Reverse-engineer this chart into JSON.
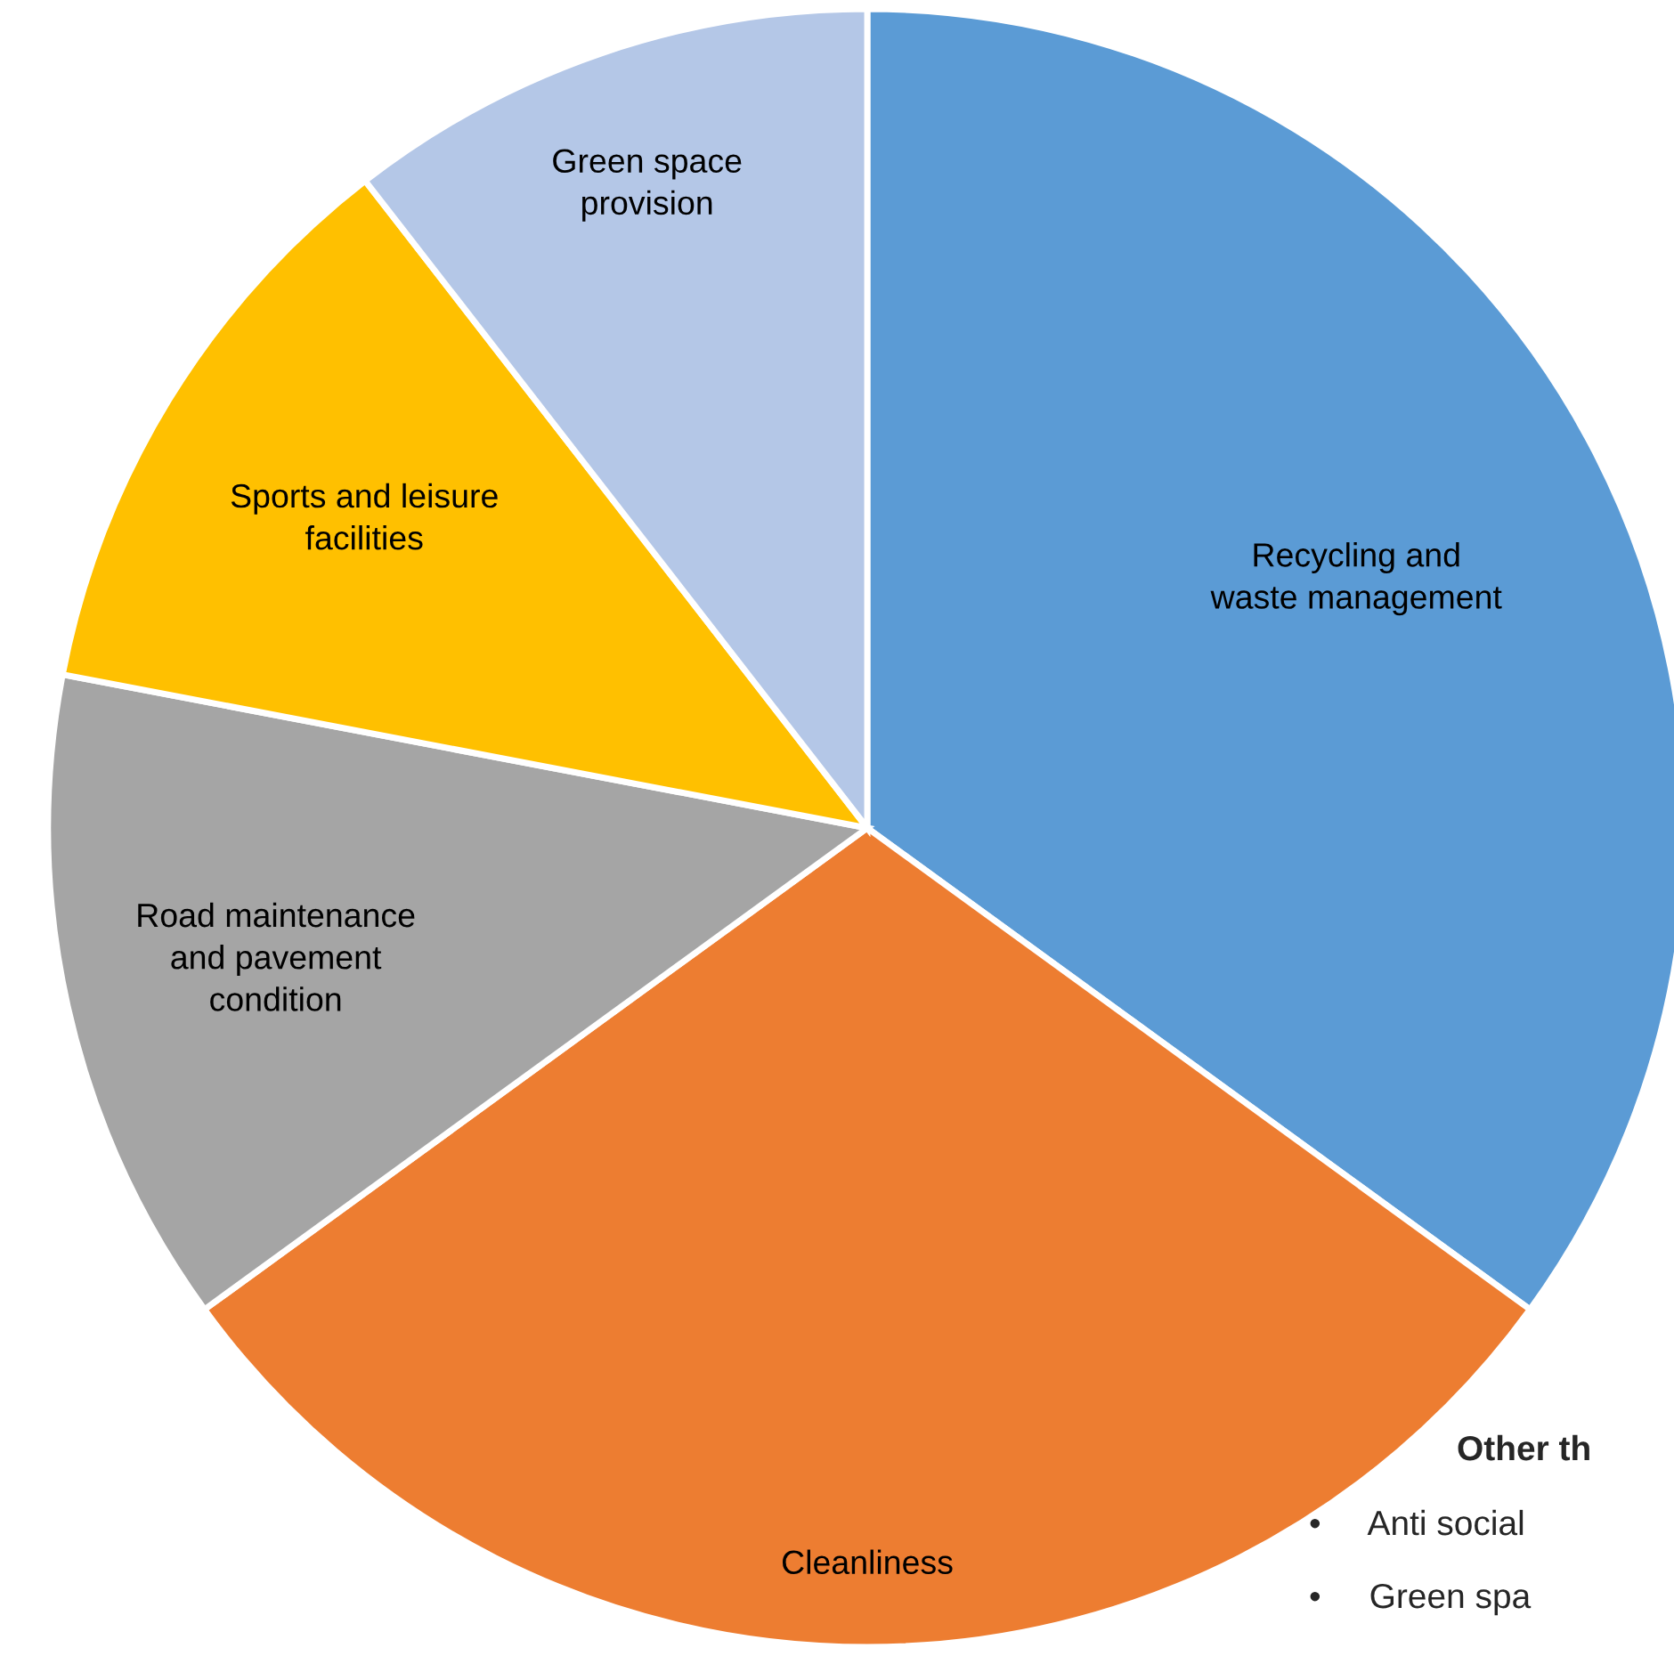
{
  "chart_data": {
    "type": "pie",
    "categories": [
      "Recycling and\nwaste management",
      "Cleanliness",
      "Road maintenance\nand pavement\ncondition",
      "Sports and leisure\nfacilities",
      "Green space\nprovision"
    ],
    "values": [
      35,
      30,
      13,
      11.5,
      10.5
    ],
    "colors": [
      "#5b9bd5",
      "#ed7d31",
      "#a5a5a5",
      "#ffc000",
      "#b4c7e7"
    ],
    "annotations": [
      "Other th",
      "•     Anti social",
      "•     Green spa"
    ]
  }
}
